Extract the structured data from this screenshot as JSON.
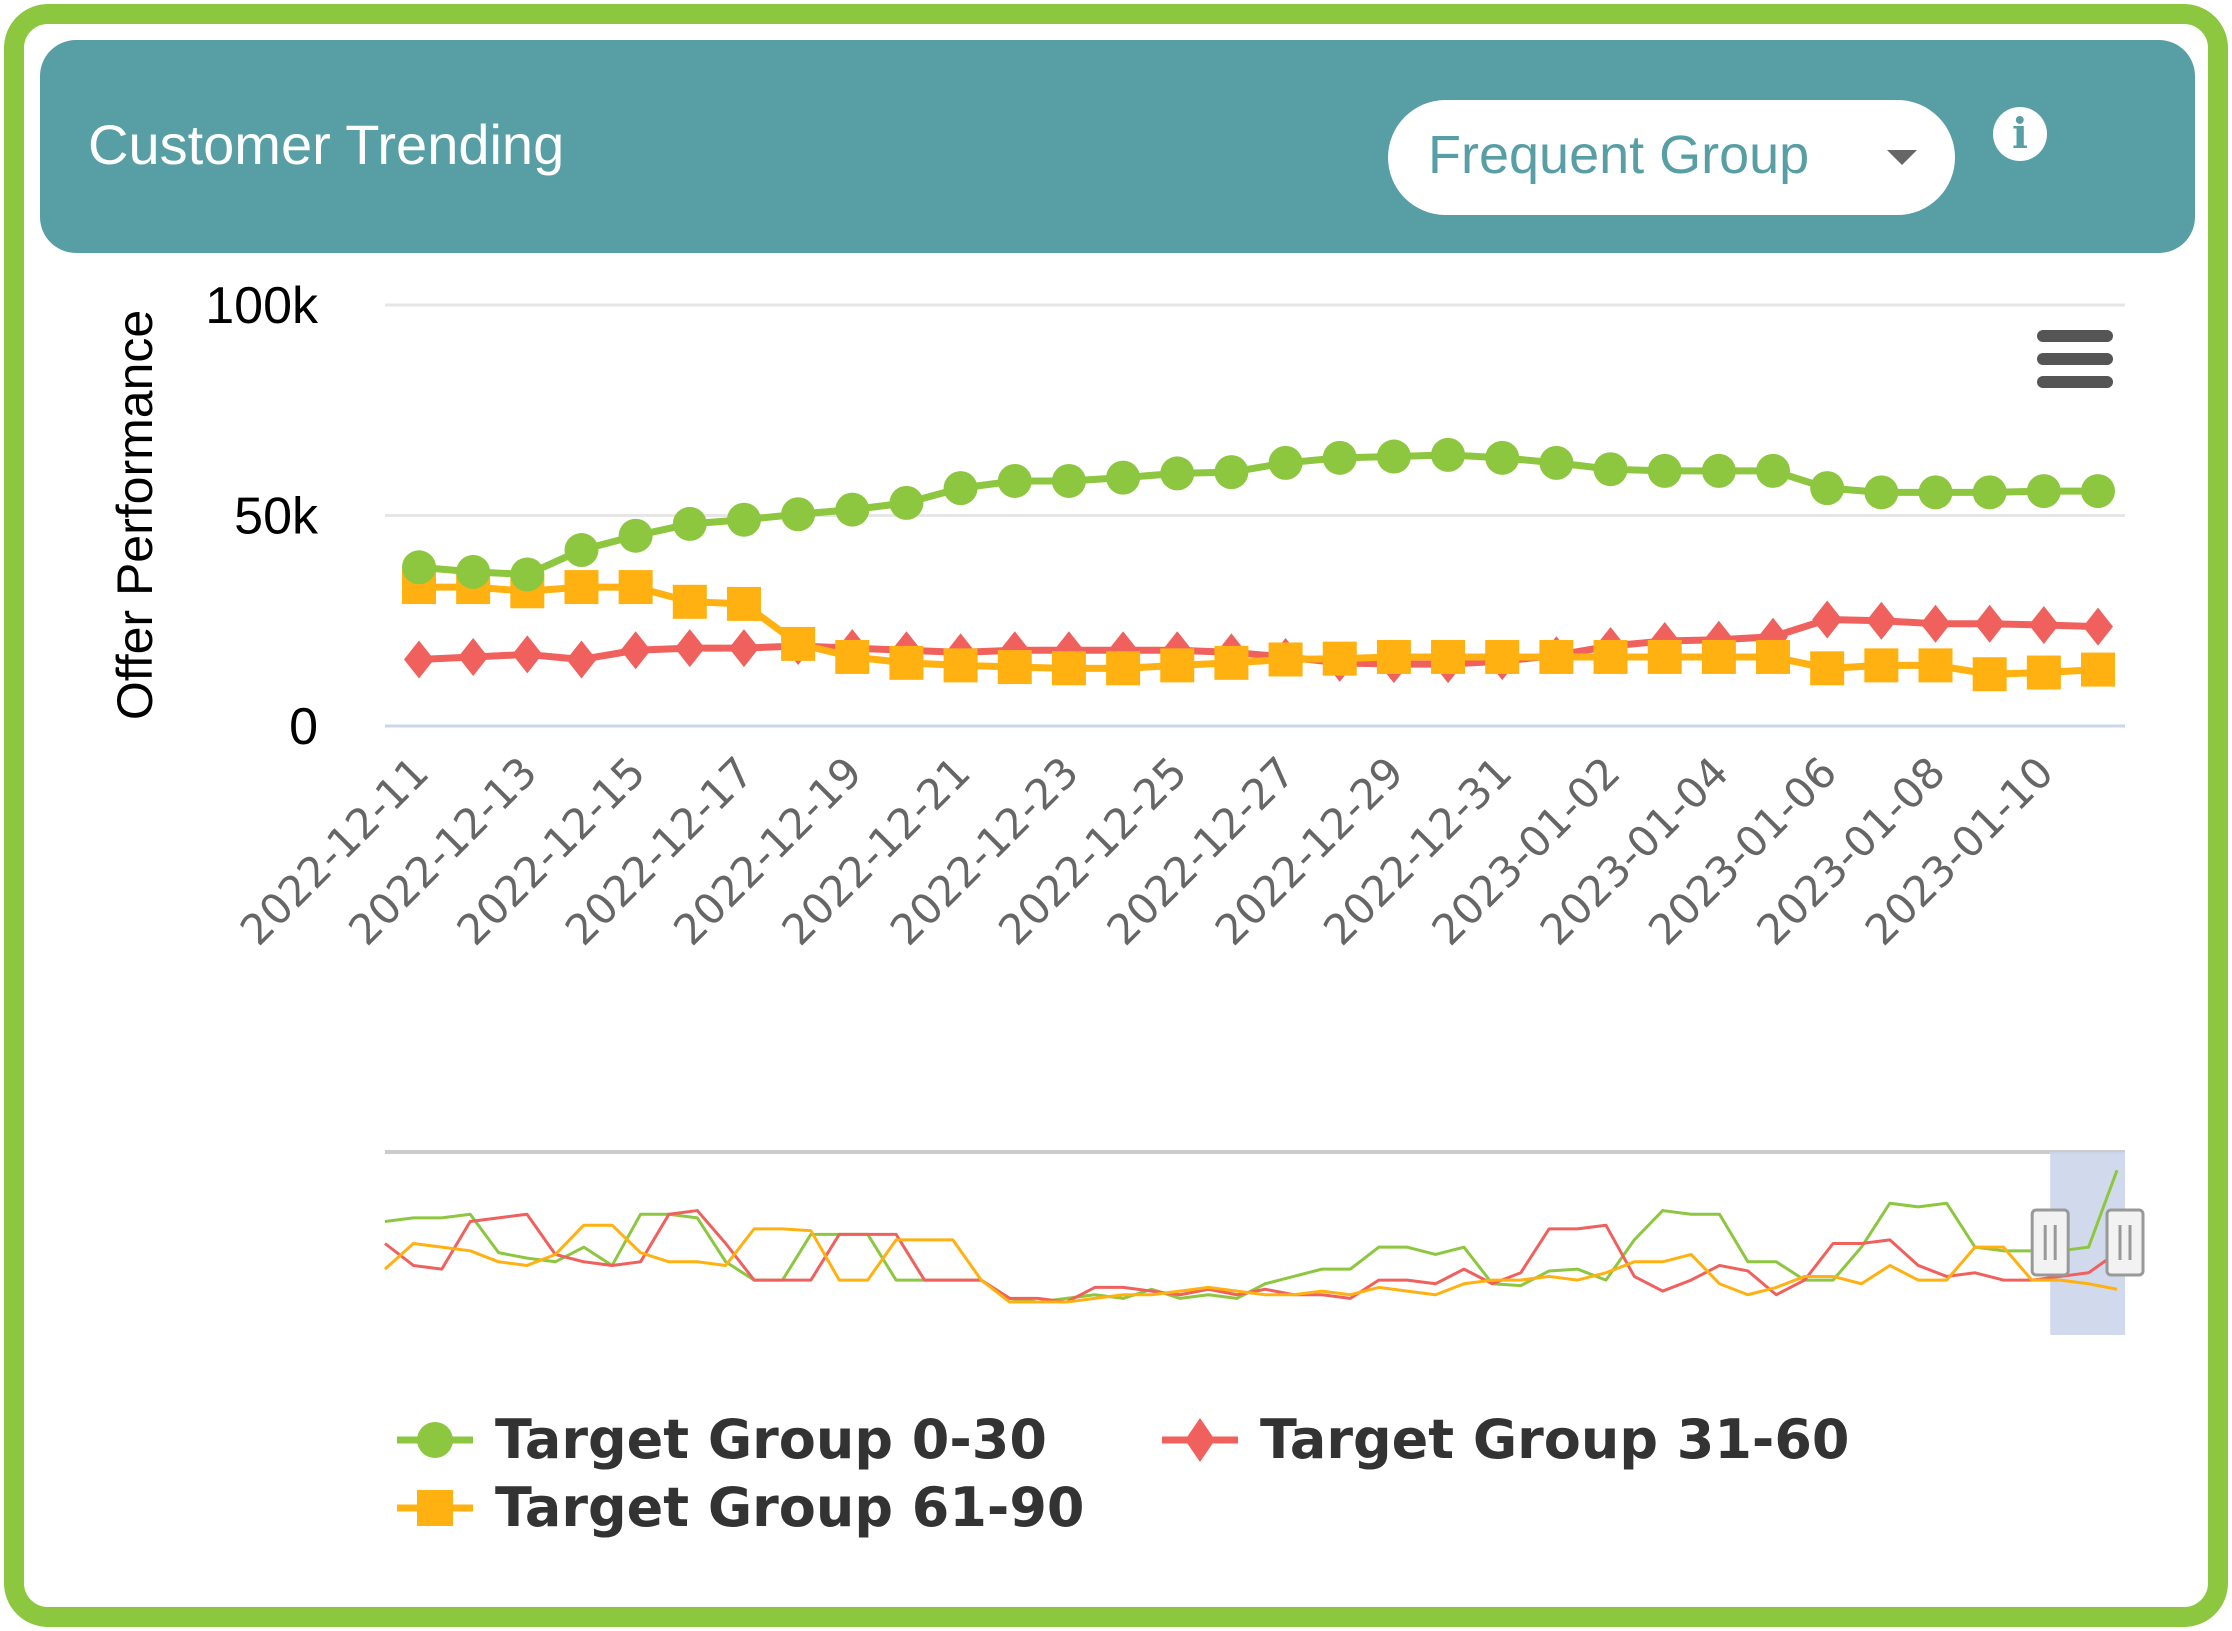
{
  "header": {
    "title": "Customer Trending",
    "dropdown_value": "Frequent Group",
    "info_icon": "info-circle-icon",
    "menu_icon": "hamburger-menu-icon"
  },
  "colors": {
    "frame": "#8dc63f",
    "header_bg": "#579ea5",
    "series_0_30": "#8dc63f",
    "series_31_60": "#f0615d",
    "series_61_90": "#ffb111"
  },
  "chart_data": {
    "type": "line",
    "title": "",
    "xlabel": "",
    "ylabel": "Offer Performance",
    "ylim": [
      0,
      100000
    ],
    "y_ticks": [
      {
        "value": 0,
        "label": "0"
      },
      {
        "value": 50000,
        "label": "50k"
      },
      {
        "value": 100000,
        "label": "100k"
      }
    ],
    "x": [
      "2022-12-11",
      "2022-12-12",
      "2022-12-13",
      "2022-12-14",
      "2022-12-15",
      "2022-12-16",
      "2022-12-17",
      "2022-12-18",
      "2022-12-19",
      "2022-12-20",
      "2022-12-21",
      "2022-12-22",
      "2022-12-23",
      "2022-12-24",
      "2022-12-25",
      "2022-12-26",
      "2022-12-27",
      "2022-12-28",
      "2022-12-29",
      "2022-12-30",
      "2022-12-31",
      "2023-01-01",
      "2023-01-02",
      "2023-01-03",
      "2023-01-04",
      "2023-01-05",
      "2023-01-06",
      "2023-01-07",
      "2023-01-08",
      "2023-01-09",
      "2023-01-10",
      "2023-01-11"
    ],
    "x_tick_labels": [
      "2022-12-11",
      "2022-12-13",
      "2022-12-15",
      "2022-12-17",
      "2022-12-19",
      "2022-12-21",
      "2022-12-23",
      "2022-12-25",
      "2022-12-27",
      "2022-12-29",
      "2022-12-31",
      "2023-01-02",
      "2023-01-04",
      "2023-01-06",
      "2023-01-08",
      "2023-01-10"
    ],
    "grid": true,
    "legend_position": "bottom-left",
    "series": [
      {
        "name": "Target Group 0-30",
        "marker": "circle",
        "color": "#8dc63f",
        "values": [
          37700,
          36600,
          36000,
          41800,
          45200,
          48000,
          49000,
          50300,
          51400,
          53000,
          56500,
          58200,
          58200,
          59000,
          60000,
          60300,
          62500,
          63700,
          64000,
          64400,
          63700,
          62500,
          61000,
          60600,
          60600,
          60600,
          56500,
          55500,
          55500,
          55500,
          55800,
          55800
        ]
      },
      {
        "name": "Target Group 31-60",
        "marker": "diamond",
        "color": "#f0615d",
        "values": [
          15800,
          16400,
          17000,
          15800,
          18000,
          18500,
          18500,
          19000,
          18500,
          18000,
          17500,
          18000,
          18000,
          18000,
          18000,
          17500,
          16400,
          15000,
          14700,
          14700,
          15400,
          16800,
          19000,
          20200,
          20500,
          21200,
          25300,
          25000,
          24300,
          24300,
          24000,
          23600
        ]
      },
      {
        "name": "Target Group 61-90",
        "marker": "square",
        "color": "#ffb111",
        "values": [
          33000,
          33000,
          32000,
          33000,
          33000,
          29500,
          29000,
          19500,
          16400,
          15000,
          14400,
          14000,
          13700,
          13700,
          14400,
          15000,
          15800,
          16000,
          16400,
          16400,
          16400,
          16400,
          16400,
          16400,
          16400,
          16400,
          13700,
          14400,
          14400,
          12300,
          12700,
          13400
        ]
      }
    ],
    "navigator": {
      "selection_fraction": [
        0.957,
        1.0
      ],
      "series": [
        {
          "name": "Target Group 0-30",
          "values": [
            62,
            64,
            64,
            66,
            45,
            42,
            40,
            48,
            38,
            66,
            66,
            64,
            40,
            30,
            30,
            55,
            55,
            55,
            30,
            30,
            30,
            30,
            20,
            18,
            20,
            22,
            20,
            25,
            20,
            22,
            20,
            28,
            32,
            36,
            36,
            48,
            48,
            44,
            48,
            28,
            27,
            35,
            36,
            30,
            52,
            68,
            66,
            66,
            40,
            40,
            30,
            30,
            48,
            72,
            70,
            72,
            48,
            46,
            46,
            46,
            48,
            90
          ]
        },
        {
          "name": "Target Group 31-60",
          "values": [
            50,
            38,
            36,
            62,
            64,
            66,
            44,
            40,
            38,
            40,
            66,
            68,
            50,
            30,
            30,
            30,
            55,
            55,
            55,
            30,
            30,
            30,
            20,
            20,
            18,
            26,
            26,
            24,
            22,
            25,
            22,
            25,
            22,
            22,
            20,
            30,
            30,
            28,
            36,
            28,
            34,
            58,
            58,
            60,
            32,
            24,
            30,
            38,
            35,
            22,
            30,
            50,
            50,
            52,
            38,
            32,
            34,
            30,
            30,
            32,
            34,
            45
          ]
        },
        {
          "name": "Target Group 61-90",
          "values": [
            36,
            50,
            48,
            46,
            40,
            38,
            44,
            60,
            60,
            45,
            40,
            40,
            38,
            58,
            58,
            57,
            30,
            30,
            52,
            52,
            52,
            30,
            18,
            18,
            18,
            20,
            22,
            22,
            24,
            26,
            24,
            22,
            22,
            24,
            22,
            26,
            24,
            22,
            28,
            30,
            30,
            32,
            30,
            34,
            40,
            40,
            44,
            28,
            22,
            26,
            32,
            32,
            28,
            38,
            30,
            30,
            48,
            48,
            30,
            30,
            28,
            25
          ]
        }
      ]
    }
  }
}
